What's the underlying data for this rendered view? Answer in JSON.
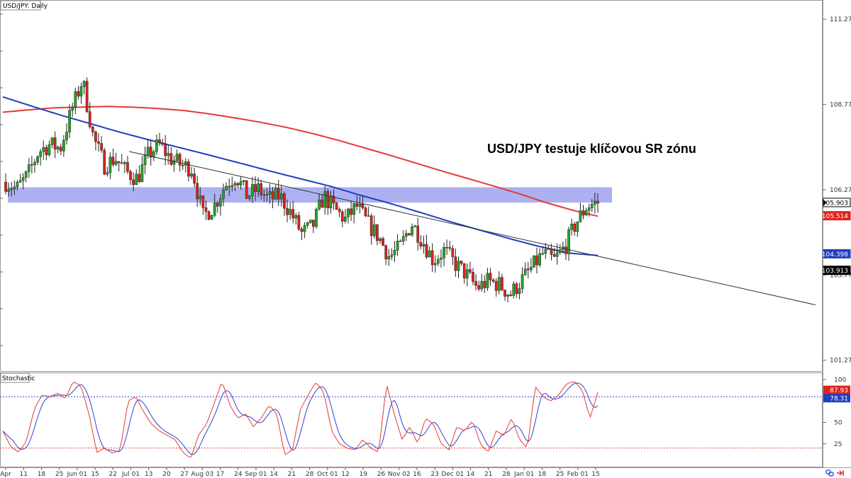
{
  "header": {
    "symbol_label": "USD/JPY: Daily"
  },
  "annotation": {
    "headline": "USD/JPY testuje klíčovou SR zónu"
  },
  "indicator": {
    "label": "Stochastic"
  },
  "colors": {
    "bull": "#26a626",
    "bear": "#e0211b",
    "ma_red": "#e53935",
    "ma_blue": "#1e3fbf",
    "zone": "#9fa3f0",
    "badge_price": "#000000",
    "badge_red": "#e0211b",
    "badge_blue": "#1e3fbf",
    "k_line": "#e53935",
    "d_line": "#2c42d4"
  },
  "chart_data": [
    {
      "type": "candlestick",
      "title": "USD/JPY: Daily",
      "ylim": [
        101.0,
        111.8
      ],
      "y_ticks": [
        "111.276",
        "108.776",
        "106.276",
        "103.776",
        "101.276"
      ],
      "x_ticks": [
        "Apr",
        "11",
        "18",
        "25",
        "Jun 01",
        "15",
        "22",
        "Jul 01",
        "13",
        "20",
        "27",
        "Aug 03",
        "17",
        "24",
        "Sep 01",
        "14",
        "21",
        "28",
        "Oct 01",
        "12",
        "19",
        "26",
        "Nov 02",
        "16",
        "23",
        "Dec 01",
        "14",
        "21",
        "28",
        "Jan 01",
        "18",
        "25",
        "Feb 01",
        "15"
      ],
      "price_badges": [
        {
          "label": "105.903",
          "value": 105.903,
          "role": "last"
        },
        {
          "label": "105.514",
          "value": 105.514,
          "role": "ma_red"
        },
        {
          "label": "104.398",
          "value": 104.398,
          "role": "ma_blue"
        },
        {
          "label": "103.913",
          "value": 103.913,
          "role": "trendline"
        }
      ],
      "sr_zone": [
        105.9,
        106.35
      ],
      "trendline": {
        "from": 107.4,
        "to": 102.9
      },
      "ma_red": [
        108.55,
        108.62,
        108.68,
        108.7,
        108.72,
        108.7,
        108.66,
        108.6,
        108.5,
        108.38,
        108.25,
        108.1,
        107.92,
        107.72,
        107.5,
        107.28,
        107.05,
        106.82,
        106.6,
        106.38,
        106.15,
        105.9,
        105.68,
        105.5
      ],
      "ma_blue": [
        109.0,
        108.72,
        108.45,
        108.2,
        107.95,
        107.72,
        107.5,
        107.28,
        107.05,
        106.82,
        106.6,
        106.38,
        106.12,
        105.88,
        105.62,
        105.35,
        105.1,
        104.85,
        104.62,
        104.42,
        104.35
      ],
      "close_path": [
        106.5,
        106.3,
        106.7,
        107.4,
        107.6,
        107.5,
        108.6,
        109.5,
        107.8,
        107.0,
        107.2,
        106.8,
        106.6,
        107.3,
        107.6,
        107.2,
        107.0,
        106.9,
        105.5,
        105.8,
        106.4,
        106.7,
        106.1,
        106.3,
        106.0,
        106.1,
        105.6,
        105.0,
        105.2,
        106.1,
        105.7,
        105.4,
        105.8,
        105.3,
        104.9,
        104.3,
        104.6,
        105.3,
        104.8,
        104.2,
        104.5,
        104.1,
        103.8,
        103.4,
        103.6,
        103.5,
        103.2,
        103.6,
        104.0,
        104.4,
        104.2,
        104.6,
        105.3,
        105.8,
        105.9
      ]
    },
    {
      "type": "line",
      "title": "Stochastic",
      "ylim": [
        0,
        100
      ],
      "y_ticks": [
        "100",
        "50",
        "25"
      ],
      "levels": [
        80,
        20
      ],
      "badges": [
        {
          "label": "87.93",
          "value": 87.93,
          "role": "k"
        },
        {
          "label": "78.31",
          "value": 78.31,
          "role": "d"
        }
      ],
      "k_path": [
        40,
        22,
        15,
        28,
        65,
        82,
        80,
        84,
        78,
        98,
        92,
        60,
        15,
        20,
        14,
        18,
        75,
        80,
        62,
        48,
        40,
        35,
        30,
        15,
        8,
        35,
        48,
        72,
        98,
        70,
        55,
        60,
        45,
        55,
        70,
        60,
        12,
        18,
        65,
        82,
        97,
        85,
        40,
        25,
        20,
        18,
        30,
        20,
        15,
        95,
        60,
        30,
        45,
        25,
        55,
        48,
        25,
        18,
        45,
        40,
        52,
        25,
        15,
        40,
        35,
        55,
        30,
        20,
        92,
        80,
        75,
        82,
        95,
        98,
        88,
        55,
        85
      ]
    }
  ]
}
